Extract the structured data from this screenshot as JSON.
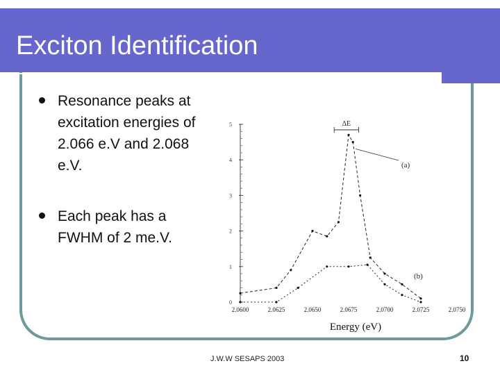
{
  "slide": {
    "title": "Exciton Identification",
    "bullets": [
      "Resonance peaks at excitation energies of 2.066 e.V and 2.068 e.V.",
      "Each peak has a FWHM of 2 me.V."
    ],
    "footer": "J.W.W SESAPS 2003",
    "page_number": "10"
  },
  "colors": {
    "title_bar": "#6666cc",
    "frame": "#6f9a9a"
  },
  "chart_data": {
    "type": "line",
    "xlabel": "Energy (eV)",
    "ylabel": "",
    "x_ticks": [
      "2.0600",
      "2.0625",
      "2.0650",
      "2.0675",
      "2.0700",
      "2.0725",
      "2.0750"
    ],
    "y_ticks": [
      "0",
      "1",
      "2",
      "3",
      "4",
      "5"
    ],
    "xlim": [
      2.06,
      2.075
    ],
    "ylim": [
      0,
      5
    ],
    "annotations": {
      "delta": "ΔE"
    },
    "series": [
      {
        "name": "(a)",
        "x": [
          2.06,
          2.0625,
          2.0635,
          2.065,
          2.066,
          2.0668,
          2.0675,
          2.0678,
          2.0683,
          2.069,
          2.07,
          2.0712,
          2.0725
        ],
        "y": [
          0.25,
          0.4,
          0.9,
          2.0,
          1.85,
          2.25,
          4.7,
          4.5,
          3.0,
          1.25,
          0.8,
          0.5,
          0.1
        ]
      },
      {
        "name": "(b)",
        "x": [
          2.06,
          2.0625,
          2.064,
          2.066,
          2.0675,
          2.0688,
          2.07,
          2.0712,
          2.0725
        ],
        "y": [
          0.0,
          0.0,
          0.4,
          1.0,
          1.0,
          1.05,
          0.5,
          0.2,
          0.0
        ]
      }
    ]
  }
}
